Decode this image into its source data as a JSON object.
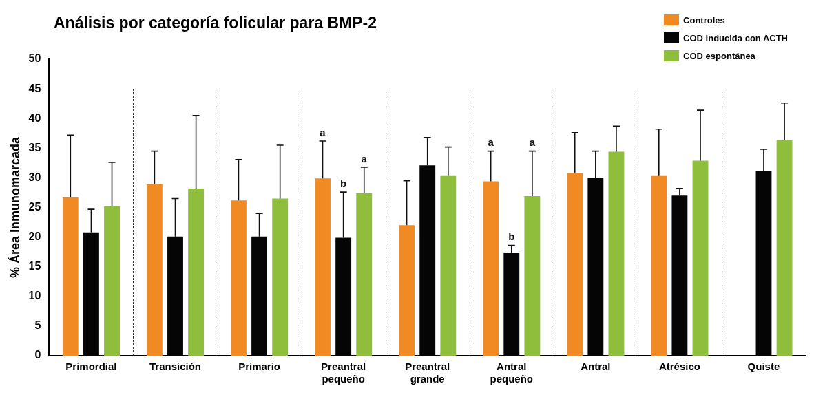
{
  "chart_data": {
    "type": "bar",
    "title": "Análisis por categoría folicular para BMP-2",
    "ylabel": "% Área Inmunomarcada",
    "categories": [
      "Primordial",
      "Transición",
      "Primario",
      "Preantral pequeño",
      "Preantral grande",
      "Antral pequeño",
      "Antral",
      "Atrésico",
      "Quiste"
    ],
    "series": [
      {
        "name": "Controles",
        "color": "#f28a24",
        "values": [
          26.7,
          28.9,
          26.2,
          29.9,
          22.0,
          29.4,
          30.8,
          30.3,
          null
        ],
        "errors": [
          [
            26.7,
            37.2
          ],
          [
            28.9,
            34.5
          ],
          [
            26.2,
            33.1
          ],
          [
            29.9,
            36.2
          ],
          [
            22.0,
            29.5
          ],
          [
            29.4,
            34.5
          ],
          [
            30.8,
            37.6
          ],
          [
            30.3,
            38.2
          ],
          null
        ]
      },
      {
        "name": "COD inducida  con ACTH",
        "color": "#050505",
        "values": [
          20.8,
          20.1,
          20.1,
          19.9,
          32.1,
          17.4,
          30.0,
          27.0,
          31.2
        ],
        "errors": [
          [
            20.8,
            24.7
          ],
          [
            20.1,
            26.5
          ],
          [
            20.1,
            24.0
          ],
          [
            19.9,
            27.6
          ],
          [
            32.1,
            36.8
          ],
          [
            17.4,
            18.6
          ],
          [
            30.0,
            34.5
          ],
          [
            27.0,
            28.2
          ],
          [
            31.2,
            34.8
          ]
        ]
      },
      {
        "name": "COD espontánea",
        "color": "#8fbe3c",
        "values": [
          25.2,
          28.2,
          26.5,
          27.4,
          30.3,
          26.9,
          34.4,
          32.9,
          36.3
        ],
        "errors": [
          [
            25.2,
            32.6
          ],
          [
            28.2,
            40.5
          ],
          [
            26.5,
            35.5
          ],
          [
            27.4,
            31.8
          ],
          [
            30.3,
            35.2
          ],
          [
            26.9,
            34.5
          ],
          [
            34.4,
            38.7
          ],
          [
            32.9,
            41.4
          ],
          [
            36.3,
            42.6
          ]
        ]
      }
    ],
    "annotations": [
      "a",
      "b",
      "a",
      "a",
      "b",
      "a"
    ],
    "ylim": [
      0,
      50
    ],
    "yticks": [
      0,
      5,
      10,
      15,
      20,
      25,
      30,
      35,
      40,
      45,
      50
    ],
    "grid": false,
    "legend": "top right"
  }
}
